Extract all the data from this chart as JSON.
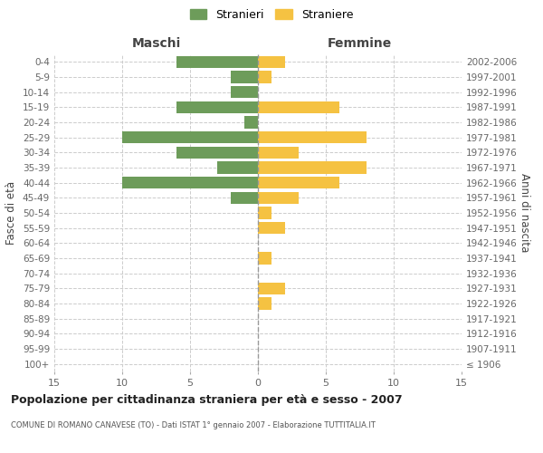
{
  "age_groups": [
    "0-4",
    "5-9",
    "10-14",
    "15-19",
    "20-24",
    "25-29",
    "30-34",
    "35-39",
    "40-44",
    "45-49",
    "50-54",
    "55-59",
    "60-64",
    "65-69",
    "70-74",
    "75-79",
    "80-84",
    "85-89",
    "90-94",
    "95-99",
    "100+"
  ],
  "birth_years": [
    "2002-2006",
    "1997-2001",
    "1992-1996",
    "1987-1991",
    "1982-1986",
    "1977-1981",
    "1972-1976",
    "1967-1971",
    "1962-1966",
    "1957-1961",
    "1952-1956",
    "1947-1951",
    "1942-1946",
    "1937-1941",
    "1932-1936",
    "1927-1931",
    "1922-1926",
    "1917-1921",
    "1912-1916",
    "1907-1911",
    "≤ 1906"
  ],
  "males": [
    6,
    2,
    2,
    6,
    1,
    10,
    6,
    3,
    10,
    2,
    0,
    0,
    0,
    0,
    0,
    0,
    0,
    0,
    0,
    0,
    0
  ],
  "females": [
    2,
    1,
    0,
    6,
    0,
    8,
    3,
    8,
    6,
    3,
    1,
    2,
    0,
    1,
    0,
    2,
    1,
    0,
    0,
    0,
    0
  ],
  "male_color": "#6d9c5a",
  "female_color": "#f5c242",
  "title": "Popolazione per cittadinanza straniera per età e sesso - 2007",
  "subtitle": "COMUNE DI ROMANO CANAVESE (TO) - Dati ISTAT 1° gennaio 2007 - Elaborazione TUTTITALIA.IT",
  "xlabel_left": "Maschi",
  "xlabel_right": "Femmine",
  "ylabel_left": "Fasce di età",
  "ylabel_right": "Anni di nascita",
  "legend_male": "Stranieri",
  "legend_female": "Straniere",
  "xlim": 15,
  "bg_color": "#ffffff",
  "grid_color": "#cccccc",
  "bar_height": 0.8
}
